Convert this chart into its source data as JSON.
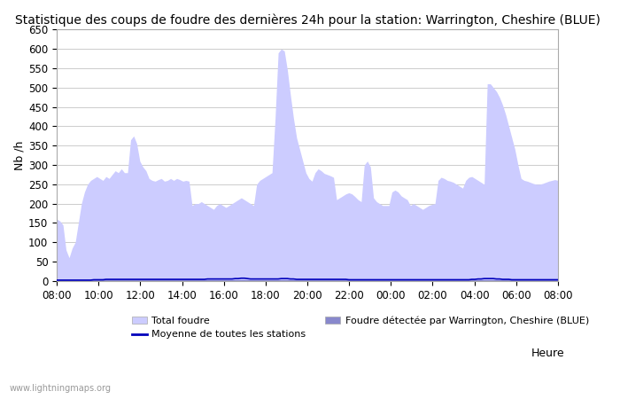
{
  "title": "Statistique des coups de foudre des dernières 24h pour la station: Warrington, Cheshire (BLUE)",
  "ylabel": "Nb /h",
  "watermark": "www.lightningmaps.org",
  "ylim": [
    0,
    650
  ],
  "yticks": [
    0,
    50,
    100,
    150,
    200,
    250,
    300,
    350,
    400,
    450,
    500,
    550,
    600,
    650
  ],
  "x_labels": [
    "08:00",
    "10:00",
    "12:00",
    "14:00",
    "16:00",
    "18:00",
    "20:00",
    "22:00",
    "00:00",
    "02:00",
    "04:00",
    "06:00",
    "08:00"
  ],
  "legend_total_label": "Total foudre",
  "legend_detected_label": "Foudre détectée par Warrington, Cheshire (BLUE)",
  "legend_moyenne_label": "Moyenne de toutes les stations",
  "legend_heure_label": "Heure",
  "fill_color_total": "#ccccff",
  "fill_color_detected": "#8888cc",
  "line_color_moyenne": "#0000bb",
  "background_color": "#ffffff",
  "total_foudre": [
    160,
    155,
    145,
    80,
    60,
    85,
    100,
    150,
    200,
    230,
    250,
    260,
    265,
    270,
    265,
    260,
    270,
    265,
    275,
    285,
    280,
    290,
    280,
    280,
    365,
    375,
    355,
    310,
    295,
    285,
    265,
    260,
    258,
    262,
    265,
    258,
    260,
    265,
    260,
    265,
    262,
    258,
    260,
    258,
    195,
    200,
    200,
    205,
    200,
    195,
    190,
    185,
    195,
    200,
    195,
    190,
    195,
    200,
    205,
    210,
    215,
    210,
    205,
    200,
    195,
    250,
    260,
    265,
    270,
    275,
    280,
    420,
    590,
    600,
    595,
    545,
    480,
    420,
    370,
    340,
    310,
    280,
    265,
    258,
    280,
    290,
    285,
    278,
    275,
    272,
    268,
    210,
    215,
    220,
    225,
    228,
    225,
    218,
    210,
    205,
    300,
    310,
    295,
    215,
    205,
    200,
    195,
    195,
    195,
    230,
    235,
    230,
    220,
    215,
    210,
    195,
    200,
    195,
    190,
    185,
    190,
    195,
    198,
    200,
    260,
    268,
    265,
    260,
    258,
    255,
    250,
    245,
    240,
    260,
    268,
    270,
    265,
    260,
    255,
    250,
    510,
    510,
    500,
    490,
    475,
    455,
    430,
    400,
    370,
    340,
    300,
    265,
    260,
    258,
    255,
    252,
    250,
    250,
    252,
    255,
    258,
    260,
    262,
    260
  ],
  "detected_foudre": [
    3,
    3,
    3,
    3,
    3,
    3,
    3,
    3,
    3,
    3,
    3,
    3,
    3,
    3,
    3,
    3,
    3,
    3,
    3,
    3,
    3,
    3,
    3,
    3,
    3,
    3,
    3,
    3,
    3,
    3,
    3,
    3,
    3,
    3,
    3,
    3,
    3,
    3,
    3,
    3,
    3,
    3,
    3,
    3,
    3,
    3,
    3,
    3,
    3,
    3,
    3,
    3,
    3,
    3,
    3,
    3,
    3,
    3,
    3,
    3,
    3,
    3,
    3,
    3,
    3,
    3,
    3,
    3,
    3,
    3,
    3,
    3,
    3,
    3,
    3,
    3,
    3,
    3,
    3,
    3,
    3,
    3,
    3,
    3,
    3,
    3,
    3,
    3,
    3,
    3,
    3,
    3,
    3,
    3,
    3,
    3,
    3,
    3,
    3,
    3,
    3,
    3,
    3,
    3,
    3,
    3,
    3,
    3,
    3,
    3,
    3,
    3,
    3,
    3,
    3,
    3,
    3,
    3,
    3,
    3,
    3,
    3,
    3,
    3,
    3,
    3,
    3,
    3,
    3,
    3,
    3,
    3,
    3,
    3,
    3,
    3,
    3,
    3,
    3,
    3,
    3,
    3,
    3,
    3,
    3,
    3,
    3,
    3,
    3,
    3,
    3,
    3,
    3,
    3,
    3,
    3,
    3,
    3,
    3,
    3,
    3,
    3,
    3,
    3
  ],
  "moyenne": [
    2,
    2,
    2,
    2,
    2,
    2,
    2,
    2,
    2,
    2,
    2,
    2,
    3,
    3,
    3,
    3,
    4,
    4,
    4,
    4,
    4,
    4,
    4,
    4,
    4,
    4,
    4,
    4,
    4,
    4,
    4,
    4,
    4,
    4,
    4,
    4,
    4,
    4,
    4,
    4,
    4,
    4,
    4,
    4,
    4,
    4,
    4,
    4,
    4,
    5,
    5,
    5,
    5,
    5,
    5,
    5,
    5,
    5,
    6,
    6,
    7,
    7,
    6,
    5,
    5,
    5,
    5,
    5,
    5,
    5,
    5,
    5,
    5,
    6,
    6,
    6,
    5,
    5,
    4,
    4,
    4,
    4,
    4,
    4,
    4,
    4,
    4,
    4,
    4,
    4,
    4,
    4,
    4,
    4,
    4,
    3,
    3,
    3,
    3,
    3,
    3,
    3,
    3,
    3,
    3,
    3,
    3,
    3,
    3,
    3,
    3,
    3,
    3,
    3,
    3,
    3,
    3,
    3,
    3,
    3,
    3,
    3,
    3,
    3,
    3,
    3,
    3,
    3,
    3,
    3,
    3,
    3,
    3,
    3,
    3,
    4,
    4,
    5,
    5,
    6,
    6,
    6,
    6,
    5,
    5,
    4,
    4,
    4,
    3,
    3,
    3,
    3,
    3,
    3,
    3,
    3,
    3,
    3,
    3,
    3,
    3,
    3,
    3,
    3
  ],
  "title_fontsize": 10,
  "axis_fontsize": 9,
  "tick_fontsize": 8.5
}
